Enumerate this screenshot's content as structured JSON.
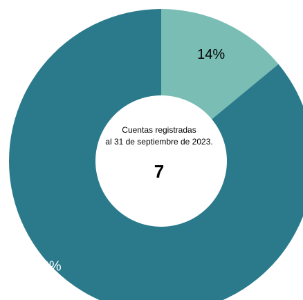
{
  "chart_data": {
    "type": "pie",
    "variant": "donut",
    "slices": [
      {
        "label": "14%",
        "value": 14,
        "color": "#79bdb4",
        "label_color": "#000000"
      },
      {
        "label": "86%",
        "value": 86,
        "color": "#2a7a8c",
        "label_color": "#ffffff"
      }
    ],
    "start_angle_deg": 0,
    "direction": "clockwise",
    "center": {
      "caption_line1": "Cuentas registradas",
      "caption_line2": "al 31 de septiembre de 2023.",
      "value": "7"
    },
    "legend": "none"
  }
}
